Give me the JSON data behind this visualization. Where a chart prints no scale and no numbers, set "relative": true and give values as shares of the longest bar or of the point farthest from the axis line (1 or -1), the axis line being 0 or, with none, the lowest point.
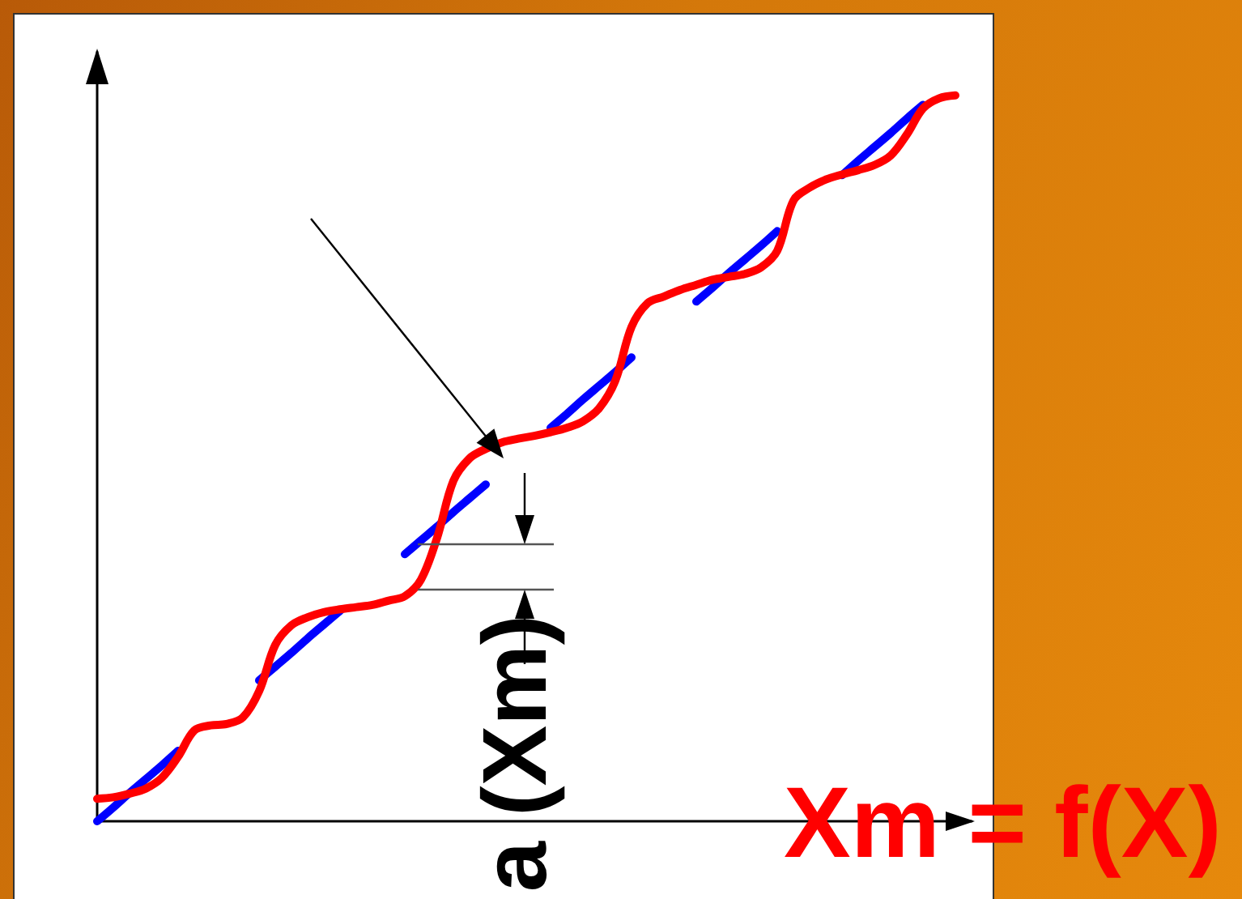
{
  "chart_data": {
    "type": "line",
    "relative": true,
    "categories": [
      null,
      null,
      null,
      null,
      null,
      null,
      null,
      null,
      null,
      null,
      null,
      null,
      null,
      null,
      null,
      null,
      null,
      null,
      null,
      null,
      null,
      null,
      null,
      null,
      null,
      null,
      null,
      null,
      null,
      null,
      null,
      null,
      null,
      null,
      null,
      null,
      null,
      null,
      null,
      null,
      null,
      null,
      null,
      null,
      null,
      null,
      null,
      null,
      null,
      null,
      null,
      null,
      null,
      null,
      null
    ],
    "series": [
      {
        "name": "Xm = f(X)",
        "color": "#ff0000",
        "values": [
          0.031,
          0.033,
          0.038,
          0.045,
          0.06,
          0.089,
          0.125,
          0.132,
          0.134,
          0.143,
          0.179,
          0.243,
          0.27,
          0.281,
          0.288,
          0.292,
          0.295,
          0.298,
          0.304,
          0.31,
          0.333,
          0.391,
          0.469,
          0.5,
          0.513,
          0.522,
          0.527,
          0.531,
          0.536,
          0.542,
          0.551,
          0.569,
          0.607,
          0.681,
          0.714,
          0.723,
          0.732,
          0.739,
          0.746,
          0.75,
          0.754,
          0.763,
          0.786,
          0.855,
          0.873,
          0.884,
          0.891,
          0.897,
          0.904,
          0.917,
          0.946,
          0.982,
          0.996,
          1.0,
          null
        ]
      },
      {
        "color": "#0000ff",
        "values": [
          0,
          0.019,
          0.039,
          0.058,
          0.077,
          0.097,
          null,
          null,
          null,
          null,
          0.194,
          0.213,
          0.232,
          0.252,
          0.271,
          0.29,
          null,
          null,
          null,
          0.368,
          0.387,
          0.406,
          0.426,
          0.445,
          0.464,
          null,
          null,
          null,
          0.542,
          0.561,
          0.581,
          0.6,
          0.619,
          0.639,
          null,
          null,
          null,
          0.716,
          0.735,
          0.755,
          0.774,
          0.793,
          0.813,
          null,
          null,
          null,
          0.89,
          0.91,
          0.929,
          0.948,
          0.968,
          0.987,
          null,
          null,
          null
        ]
      }
    ],
    "marker": "none",
    "annotations": [
      "a (Xm)"
    ]
  }
}
